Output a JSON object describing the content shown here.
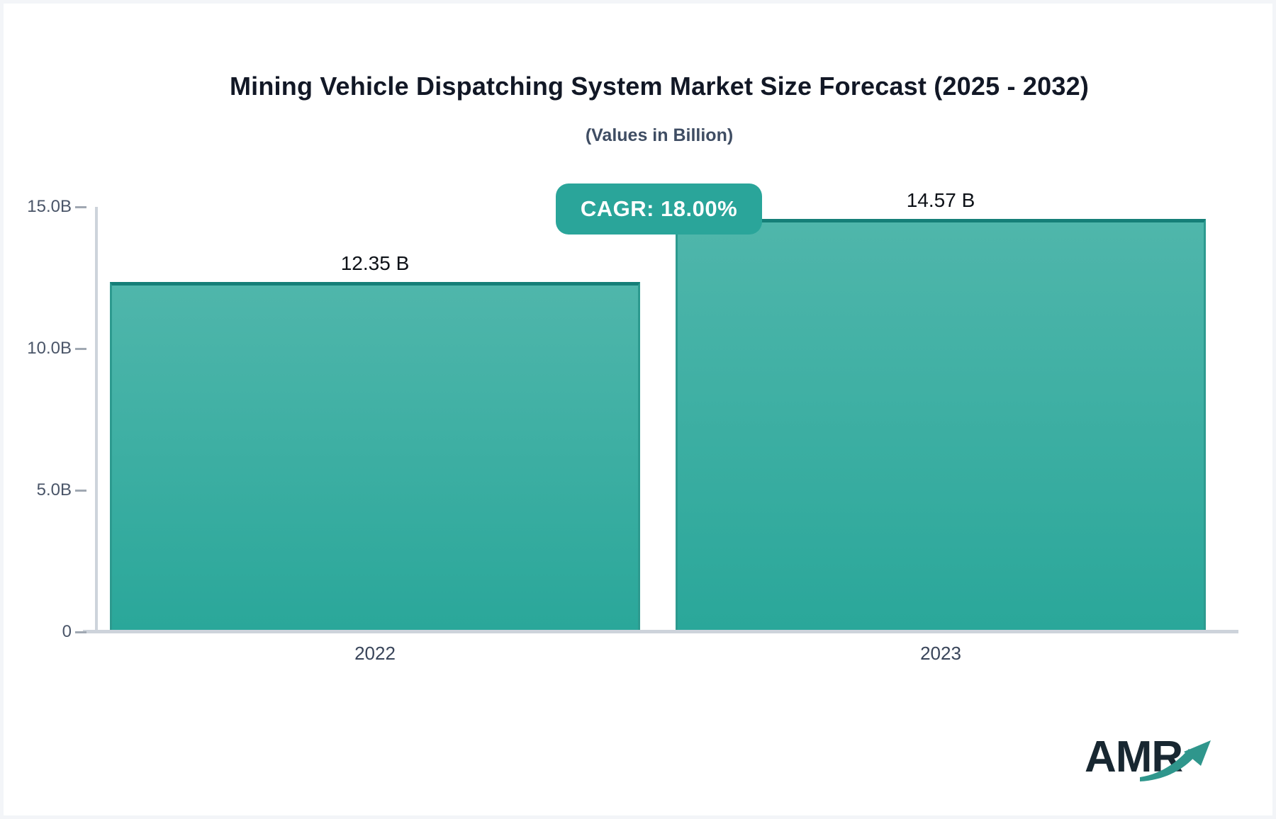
{
  "title": "Mining Vehicle Dispatching System Market Size Forecast (2025 - 2032)",
  "subtitle": "(Values in Billion)",
  "badge": {
    "label": "CAGR: 18.00%"
  },
  "logo": {
    "text": "AMR",
    "icon": "growth-arrow-icon"
  },
  "colors": {
    "bar_gradient_top": "#4fb6ab",
    "bar_gradient_bottom": "#2aa79a",
    "bar_border": "#157f78",
    "badge_background": "#2aa59a",
    "badge_text": "#ffffff",
    "axis_line": "#cdd3db",
    "tick_dash": "#a0a8b2",
    "y_tick_text": "#4a5568",
    "category_text": "#39455a",
    "title_text": "#121826",
    "subtitle_text": "#3f4d63",
    "value_label_text": "#0d1117",
    "logo_text": "#182731",
    "logo_arrow": "#2f968c"
  },
  "chart_data": {
    "type": "bar",
    "categories": [
      "2022",
      "2023"
    ],
    "values": [
      12.35,
      14.57
    ],
    "value_labels": [
      "12.35 B",
      "14.57 B"
    ],
    "title": "Mining Vehicle Dispatching System Market Size Forecast (2025 - 2032)",
    "subtitle": "(Values in Billion)",
    "annotation": "CAGR: 18.00%",
    "xlabel": "",
    "ylabel": "",
    "ylim": [
      0,
      15
    ],
    "yticks": [
      {
        "label": "15.0B",
        "value": 15
      },
      {
        "label": "10.0B",
        "value": 10
      },
      {
        "label": "5.0B",
        "value": 5
      },
      {
        "label": "0",
        "value": 0
      }
    ],
    "grid": false,
    "legend": false,
    "bar_color": "teal-gradient"
  }
}
